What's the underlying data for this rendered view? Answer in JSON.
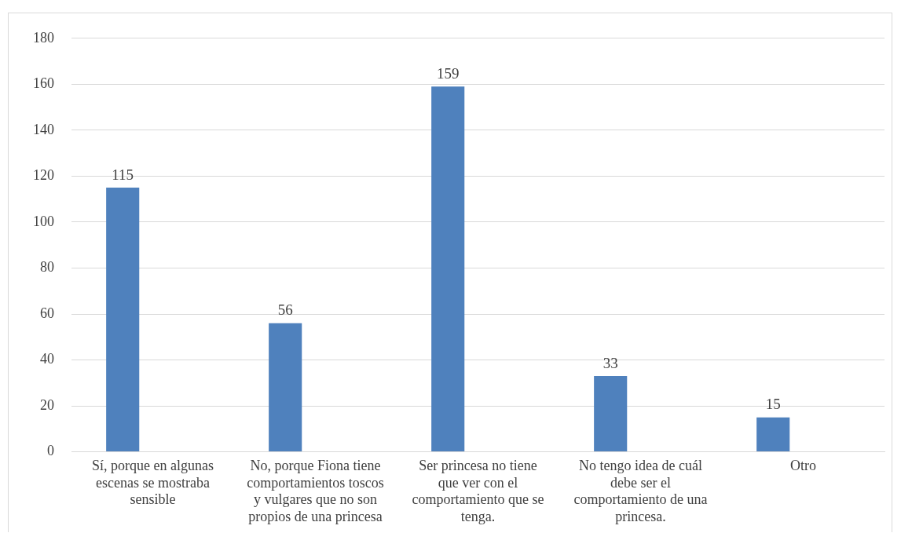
{
  "chart_data": {
    "type": "bar",
    "categories": [
      "Sí, porque en algunas escenas se mostraba sensible",
      "No, porque Fiona tiene comportamientos toscos y vulgares que no son propios de una princesa",
      "Ser princesa no tiene que ver con el comportamiento que se tenga.",
      "No tengo idea de cuál debe ser el comportamiento de una princesa.",
      "Otro"
    ],
    "values": [
      115,
      56,
      159,
      33,
      15
    ],
    "color": "#4f81bd",
    "ylim": [
      0,
      180
    ],
    "yticks": [
      0,
      20,
      40,
      60,
      80,
      100,
      120,
      140,
      160,
      180
    ],
    "grid": "y",
    "data_labels": true
  }
}
